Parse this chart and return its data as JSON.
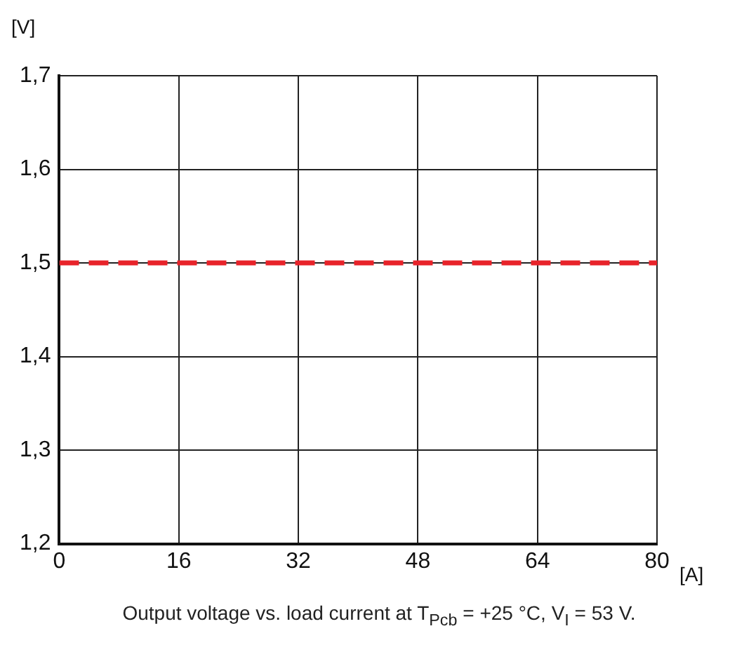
{
  "chart_data": {
    "type": "line",
    "xlabel": "[A]",
    "ylabel": "[V]",
    "annotations": [
      "Output voltage vs. load current at T$_{Pcb}$ = +25 °C, V$_{I}$ = 53 V."
    ],
    "x": [
      0,
      80
    ],
    "series": [
      {
        "color": "#e8232a",
        "values": [
          1.5,
          1.5
        ]
      }
    ],
    "line_style": "dashed",
    "marker": "none",
    "xlim": [
      0,
      80
    ],
    "xticks": [
      0,
      16,
      32,
      48,
      64,
      80
    ],
    "ylim": [
      1.2,
      1.7
    ],
    "yticks": [
      {
        "value": 1.2,
        "label": "1,2"
      },
      {
        "value": 1.3,
        "label": "1,3"
      },
      {
        "value": 1.4,
        "label": "1,4"
      },
      {
        "value": 1.5,
        "label": "1,5"
      },
      {
        "value": 1.6,
        "label": "1,6"
      },
      {
        "value": 1.7,
        "label": "1,7"
      }
    ],
    "grid": true,
    "legend": false
  }
}
